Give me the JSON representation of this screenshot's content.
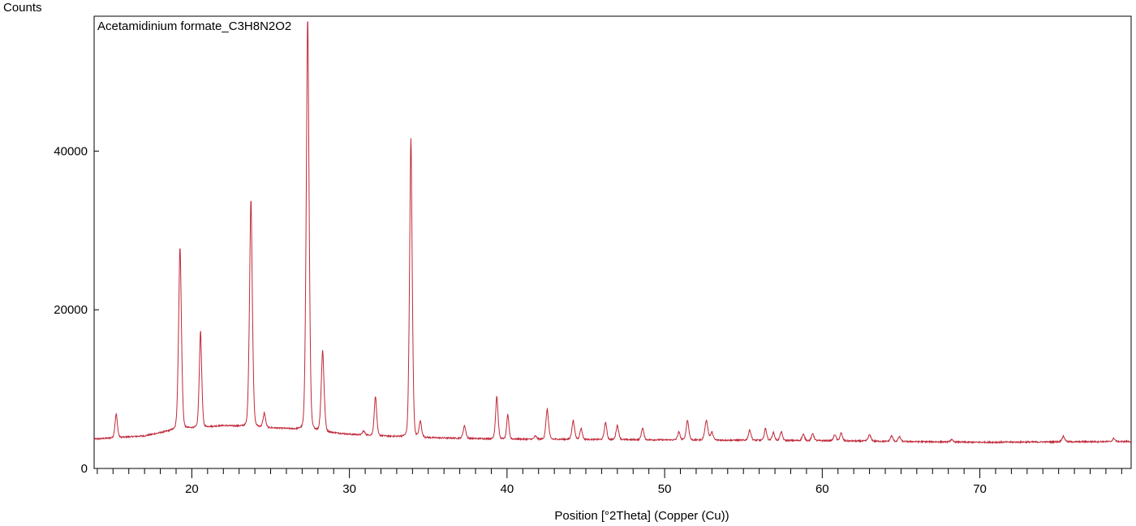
{
  "chart_data": {
    "type": "line",
    "title": "Acetamidinium formate_C3H8N2O2",
    "ylabel": "Counts",
    "xlabel": "Position [°2Theta] (Copper (Cu))",
    "xlim": [
      13.8,
      79.6
    ],
    "ylim": [
      0,
      57000
    ],
    "grid": false,
    "x_ticks": [
      20,
      30,
      40,
      50,
      60,
      70
    ],
    "y_ticks": [
      0,
      20000,
      40000
    ],
    "series": [
      {
        "color": "#c0283a",
        "baseline": [
          [
            13.8,
            3700
          ],
          [
            17,
            4100
          ],
          [
            19,
            4900
          ],
          [
            22,
            5400
          ],
          [
            26,
            5000
          ],
          [
            30,
            4300
          ],
          [
            34,
            3900
          ],
          [
            40,
            3700
          ],
          [
            50,
            3600
          ],
          [
            60,
            3500
          ],
          [
            70,
            3300
          ],
          [
            79.6,
            3400
          ]
        ],
        "peaks": [
          {
            "x": 15.2,
            "h": 3000,
            "w": 0.12
          },
          {
            "x": 19.25,
            "h": 23000,
            "w": 0.14
          },
          {
            "x": 20.55,
            "h": 12200,
            "w": 0.12
          },
          {
            "x": 23.75,
            "h": 28700,
            "w": 0.14
          },
          {
            "x": 24.6,
            "h": 1800,
            "w": 0.12
          },
          {
            "x": 27.35,
            "h": 52000,
            "w": 0.14
          },
          {
            "x": 28.3,
            "h": 10200,
            "w": 0.14
          },
          {
            "x": 30.9,
            "h": 500,
            "w": 0.12
          },
          {
            "x": 31.65,
            "h": 5000,
            "w": 0.12
          },
          {
            "x": 33.9,
            "h": 37700,
            "w": 0.13
          },
          {
            "x": 34.5,
            "h": 2000,
            "w": 0.12
          },
          {
            "x": 37.3,
            "h": 1600,
            "w": 0.13
          },
          {
            "x": 39.35,
            "h": 5400,
            "w": 0.12
          },
          {
            "x": 40.05,
            "h": 3100,
            "w": 0.11
          },
          {
            "x": 41.8,
            "h": 400,
            "w": 0.12
          },
          {
            "x": 42.55,
            "h": 3800,
            "w": 0.13
          },
          {
            "x": 44.2,
            "h": 2400,
            "w": 0.13
          },
          {
            "x": 44.7,
            "h": 1400,
            "w": 0.12
          },
          {
            "x": 46.25,
            "h": 2200,
            "w": 0.12
          },
          {
            "x": 47.0,
            "h": 1800,
            "w": 0.13
          },
          {
            "x": 48.6,
            "h": 1500,
            "w": 0.12
          },
          {
            "x": 50.9,
            "h": 1000,
            "w": 0.12
          },
          {
            "x": 51.45,
            "h": 2500,
            "w": 0.13
          },
          {
            "x": 52.65,
            "h": 2500,
            "w": 0.15
          },
          {
            "x": 53.0,
            "h": 1000,
            "w": 0.12
          },
          {
            "x": 55.4,
            "h": 1300,
            "w": 0.13
          },
          {
            "x": 56.4,
            "h": 1500,
            "w": 0.12
          },
          {
            "x": 56.9,
            "h": 1000,
            "w": 0.12
          },
          {
            "x": 57.4,
            "h": 1100,
            "w": 0.12
          },
          {
            "x": 58.8,
            "h": 800,
            "w": 0.12
          },
          {
            "x": 59.4,
            "h": 900,
            "w": 0.12
          },
          {
            "x": 60.8,
            "h": 800,
            "w": 0.12
          },
          {
            "x": 61.2,
            "h": 1000,
            "w": 0.12
          },
          {
            "x": 63.0,
            "h": 800,
            "w": 0.14
          },
          {
            "x": 64.4,
            "h": 700,
            "w": 0.12
          },
          {
            "x": 64.9,
            "h": 600,
            "w": 0.12
          },
          {
            "x": 68.2,
            "h": 300,
            "w": 0.12
          },
          {
            "x": 75.3,
            "h": 700,
            "w": 0.14
          },
          {
            "x": 78.5,
            "h": 400,
            "w": 0.12
          }
        ]
      }
    ]
  }
}
